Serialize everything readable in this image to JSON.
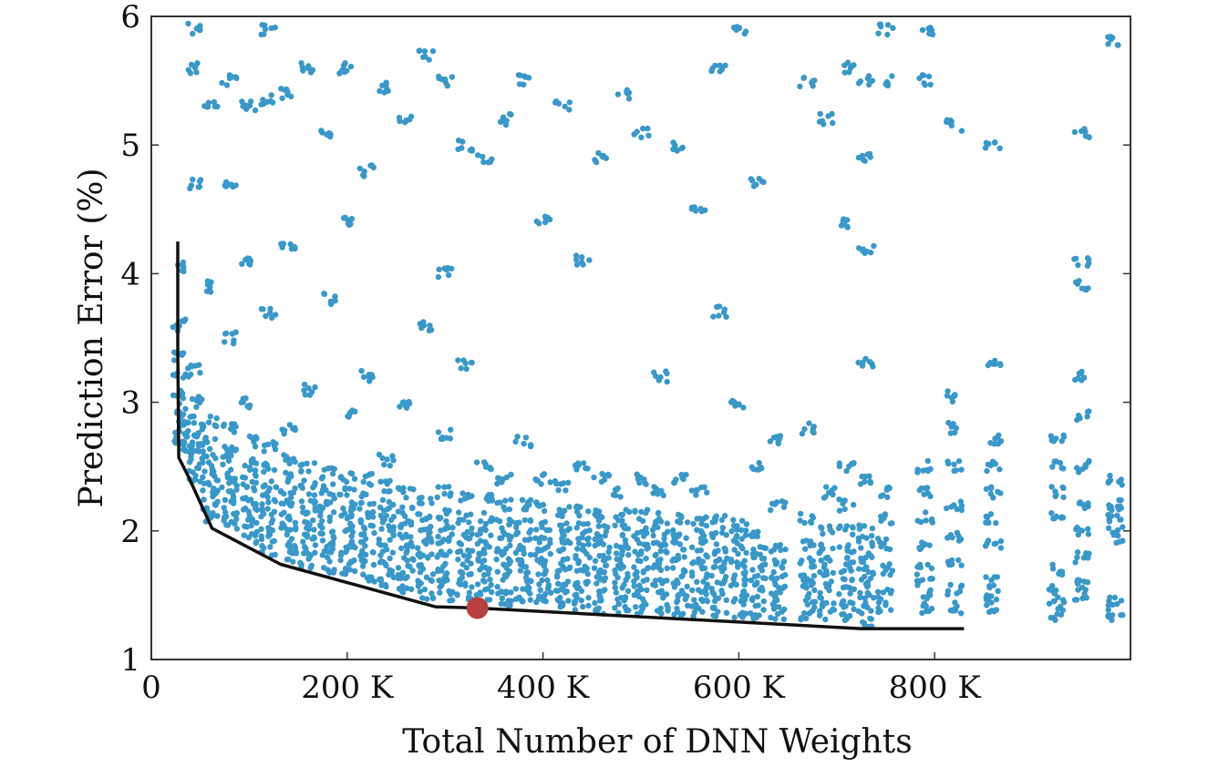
{
  "chart_data": {
    "type": "scatter",
    "title": "",
    "xlabel": "Total Number of DNN Weights",
    "ylabel": "Prediction Error (%)",
    "xlim": [
      0,
      1000000
    ],
    "ylim": [
      1,
      6
    ],
    "grid": false,
    "x_ticks": [
      {
        "value": 0,
        "label": "0"
      },
      {
        "value": 200000,
        "label": "200 K"
      },
      {
        "value": 400000,
        "label": "400 K"
      },
      {
        "value": 600000,
        "label": "600 K"
      },
      {
        "value": 800000,
        "label": "800 K"
      }
    ],
    "y_ticks": [
      {
        "value": 1,
        "label": "1"
      },
      {
        "value": 2,
        "label": "2"
      },
      {
        "value": 3,
        "label": "3"
      },
      {
        "value": 4,
        "label": "4"
      },
      {
        "value": 5,
        "label": "5"
      },
      {
        "value": 6,
        "label": "6"
      }
    ],
    "colors": {
      "points": "#3a98c8",
      "frontier": "#111111",
      "highlight": "#b84040"
    },
    "frontier": {
      "x": [
        27000,
        27000,
        28000,
        38000,
        62000,
        132000,
        290000,
        333000,
        725000,
        830000
      ],
      "y": [
        4.25,
        3.4,
        2.57,
        2.42,
        2.02,
        1.74,
        1.41,
        1.4,
        1.24,
        1.24
      ]
    },
    "highlight": {
      "x": 333000,
      "y": 1.4
    },
    "clusters": [
      {
        "x": 30000,
        "y": [
          2.65,
          2.7,
          2.78,
          2.86,
          2.95,
          3.05,
          3.2,
          3.35,
          3.6,
          4.05
        ]
      },
      {
        "x": 45000,
        "y": [
          2.4,
          2.5,
          2.58,
          2.66,
          2.75,
          2.85,
          3.0,
          3.25,
          4.7,
          5.6,
          5.9
        ]
      },
      {
        "x": 60000,
        "y": [
          2.1,
          2.2,
          2.3,
          2.4,
          2.5,
          2.6,
          2.7,
          2.85,
          3.9,
          5.3
        ]
      },
      {
        "x": 80000,
        "y": [
          2.05,
          2.15,
          2.25,
          2.35,
          2.45,
          2.55,
          2.65,
          2.8,
          3.5,
          4.7,
          5.5
        ]
      },
      {
        "x": 100000,
        "y": [
          1.95,
          2.05,
          2.15,
          2.25,
          2.35,
          2.45,
          2.55,
          2.7,
          3.0,
          4.1,
          5.3
        ]
      },
      {
        "x": 120000,
        "y": [
          1.85,
          1.95,
          2.05,
          2.15,
          2.25,
          2.35,
          2.5,
          2.65,
          3.7,
          5.35,
          5.9
        ]
      },
      {
        "x": 140000,
        "y": [
          1.8,
          1.9,
          2.0,
          2.1,
          2.2,
          2.3,
          2.42,
          2.55,
          2.8,
          4.2,
          5.4
        ]
      },
      {
        "x": 160000,
        "y": [
          1.75,
          1.85,
          1.95,
          2.05,
          2.15,
          2.25,
          2.35,
          2.5,
          3.1,
          5.6
        ]
      },
      {
        "x": 180000,
        "y": [
          1.72,
          1.82,
          1.92,
          2.02,
          2.12,
          2.22,
          2.32,
          2.45,
          3.8,
          5.1
        ]
      },
      {
        "x": 200000,
        "y": [
          1.7,
          1.8,
          1.9,
          2.0,
          2.1,
          2.2,
          2.3,
          2.42,
          2.9,
          4.4,
          5.6
        ]
      },
      {
        "x": 220000,
        "y": [
          1.65,
          1.75,
          1.85,
          1.95,
          2.05,
          2.15,
          2.25,
          2.4,
          3.2,
          4.8
        ]
      },
      {
        "x": 240000,
        "y": [
          1.6,
          1.7,
          1.8,
          1.9,
          2.0,
          2.1,
          2.2,
          2.35,
          2.55,
          5.45
        ]
      },
      {
        "x": 260000,
        "y": [
          1.55,
          1.65,
          1.75,
          1.85,
          1.95,
          2.05,
          2.15,
          2.3,
          3.0,
          5.2
        ]
      },
      {
        "x": 280000,
        "y": [
          1.5,
          1.6,
          1.7,
          1.8,
          1.9,
          2.0,
          2.12,
          2.25,
          3.6,
          5.7
        ]
      },
      {
        "x": 300000,
        "y": [
          1.5,
          1.6,
          1.7,
          1.8,
          1.9,
          2.0,
          2.12,
          2.3,
          2.75,
          4.0,
          5.5
        ]
      },
      {
        "x": 320000,
        "y": [
          1.48,
          1.58,
          1.68,
          1.78,
          1.88,
          1.98,
          2.1,
          2.25,
          3.3,
          5.0
        ]
      },
      {
        "x": 340000,
        "y": [
          1.48,
          1.58,
          1.68,
          1.78,
          1.88,
          1.98,
          2.1,
          2.25,
          2.5,
          4.9
        ]
      },
      {
        "x": 360000,
        "y": [
          1.45,
          1.55,
          1.65,
          1.75,
          1.85,
          1.95,
          2.05,
          2.2,
          2.4,
          5.2
        ]
      },
      {
        "x": 380000,
        "y": [
          1.45,
          1.55,
          1.65,
          1.75,
          1.85,
          1.95,
          2.05,
          2.2,
          2.7,
          5.5
        ]
      },
      {
        "x": 400000,
        "y": [
          1.45,
          1.55,
          1.65,
          1.75,
          1.85,
          1.95,
          2.05,
          2.2,
          2.4,
          4.4
        ]
      },
      {
        "x": 420000,
        "y": [
          1.42,
          1.52,
          1.62,
          1.72,
          1.82,
          1.92,
          2.02,
          2.15,
          2.35,
          5.3
        ]
      },
      {
        "x": 440000,
        "y": [
          1.42,
          1.52,
          1.62,
          1.72,
          1.82,
          1.92,
          2.02,
          2.15,
          2.5,
          4.1
        ]
      },
      {
        "x": 460000,
        "y": [
          1.4,
          1.5,
          1.6,
          1.7,
          1.8,
          1.9,
          2.0,
          2.12,
          2.4,
          4.9
        ]
      },
      {
        "x": 480000,
        "y": [
          1.4,
          1.5,
          1.6,
          1.7,
          1.8,
          1.9,
          2.0,
          2.12,
          2.3,
          5.4
        ]
      },
      {
        "x": 500000,
        "y": [
          1.4,
          1.5,
          1.6,
          1.7,
          1.8,
          1.9,
          2.0,
          2.12,
          2.4,
          5.1
        ]
      },
      {
        "x": 520000,
        "y": [
          1.4,
          1.5,
          1.6,
          1.7,
          1.8,
          1.9,
          2.0,
          2.1,
          2.3,
          3.2
        ]
      },
      {
        "x": 540000,
        "y": [
          1.38,
          1.48,
          1.58,
          1.68,
          1.78,
          1.88,
          1.98,
          2.1,
          2.4,
          5.0
        ]
      },
      {
        "x": 560000,
        "y": [
          1.38,
          1.48,
          1.58,
          1.68,
          1.78,
          1.88,
          1.98,
          2.08,
          2.3,
          4.5
        ]
      },
      {
        "x": 580000,
        "y": [
          1.38,
          1.48,
          1.58,
          1.68,
          1.78,
          1.88,
          1.98,
          2.1,
          3.7,
          5.6
        ]
      },
      {
        "x": 600000,
        "y": [
          1.36,
          1.46,
          1.56,
          1.66,
          1.76,
          1.86,
          1.96,
          2.05,
          3.0,
          5.9
        ]
      },
      {
        "x": 620000,
        "y": [
          1.36,
          1.46,
          1.56,
          1.66,
          1.76,
          1.86,
          1.96,
          2.5,
          4.7
        ]
      },
      {
        "x": 640000,
        "y": [
          1.35,
          1.45,
          1.55,
          1.65,
          1.75,
          1.85,
          2.2,
          2.7
        ]
      },
      {
        "x": 670000,
        "y": [
          1.35,
          1.45,
          1.55,
          1.65,
          1.75,
          1.9,
          2.1,
          2.8,
          5.5
        ]
      },
      {
        "x": 690000,
        "y": [
          1.35,
          1.45,
          1.55,
          1.65,
          1.75,
          1.85,
          2.0,
          2.3,
          5.2
        ]
      },
      {
        "x": 710000,
        "y": [
          1.35,
          1.45,
          1.55,
          1.65,
          1.75,
          1.85,
          2.0,
          2.2,
          2.5,
          4.4,
          5.6
        ]
      },
      {
        "x": 730000,
        "y": [
          1.3,
          1.4,
          1.5,
          1.6,
          1.7,
          1.8,
          1.9,
          2.0,
          2.4,
          3.3,
          4.2,
          4.9,
          5.5
        ]
      },
      {
        "x": 750000,
        "y": [
          1.4,
          1.5,
          1.7,
          1.9,
          2.1,
          2.3,
          5.5,
          5.9
        ]
      },
      {
        "x": 790000,
        "y": [
          1.4,
          1.5,
          1.6,
          1.7,
          1.9,
          2.1,
          2.3,
          2.5,
          5.5,
          5.9
        ]
      },
      {
        "x": 820000,
        "y": [
          1.4,
          1.55,
          1.75,
          1.95,
          2.2,
          2.5,
          2.8,
          3.05,
          5.15
        ]
      },
      {
        "x": 860000,
        "y": [
          1.4,
          1.5,
          1.6,
          1.9,
          2.1,
          2.3,
          2.5,
          2.7,
          3.3,
          5.0
        ]
      },
      {
        "x": 925000,
        "y": [
          1.35,
          1.45,
          1.55,
          1.7,
          2.1,
          2.3,
          2.5,
          2.7
        ]
      },
      {
        "x": 950000,
        "y": [
          1.5,
          1.6,
          1.8,
          2.0,
          2.2,
          2.5,
          2.9,
          3.2,
          3.9,
          4.1,
          5.1
        ]
      },
      {
        "x": 985000,
        "y": [
          1.35,
          1.45,
          1.95,
          2.05,
          2.15,
          2.2,
          2.4,
          5.8
        ]
      }
    ]
  }
}
